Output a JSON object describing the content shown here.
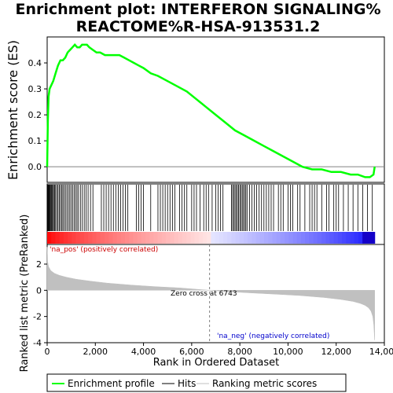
{
  "chart_data": {
    "type": "line",
    "title_line1": "Enrichment plot: INTERFERON SIGNALING%",
    "title_line2": "REACTOME%R-HSA-913531.2",
    "top_panel": {
      "ylabel": "Enrichment score (ES)",
      "ylim": [
        -0.06,
        0.5
      ],
      "yticks": [
        0.0,
        0.1,
        0.2,
        0.3,
        0.4
      ],
      "ytick_labels": [
        "0.0",
        "0.1",
        "0.2",
        "0.3",
        "0.4"
      ],
      "series": [
        {
          "name": "Enrichment profile",
          "color": "#00ff00",
          "x": [
            0,
            30,
            60,
            100,
            150,
            250,
            350,
            450,
            550,
            650,
            750,
            850,
            950,
            1050,
            1150,
            1250,
            1350,
            1450,
            1550,
            1650,
            1750,
            1900,
            2050,
            2200,
            2400,
            2600,
            2800,
            3000,
            3200,
            3400,
            3600,
            3800,
            4000,
            4300,
            4600,
            5000,
            5400,
            5800,
            6200,
            6600,
            7000,
            7400,
            7800,
            8200,
            8600,
            9000,
            9400,
            9800,
            10200,
            10600,
            11000,
            11400,
            11800,
            12200,
            12600,
            12900,
            13200,
            13400,
            13550,
            13600
          ],
          "y": [
            0.0,
            0.18,
            0.27,
            0.3,
            0.31,
            0.33,
            0.36,
            0.39,
            0.41,
            0.41,
            0.42,
            0.44,
            0.45,
            0.46,
            0.47,
            0.46,
            0.46,
            0.47,
            0.47,
            0.47,
            0.46,
            0.45,
            0.44,
            0.44,
            0.43,
            0.43,
            0.43,
            0.43,
            0.42,
            0.41,
            0.4,
            0.39,
            0.38,
            0.36,
            0.35,
            0.33,
            0.31,
            0.29,
            0.26,
            0.23,
            0.2,
            0.17,
            0.14,
            0.12,
            0.1,
            0.08,
            0.06,
            0.04,
            0.02,
            0.0,
            -0.01,
            -0.01,
            -0.02,
            -0.02,
            -0.03,
            -0.03,
            -0.04,
            -0.04,
            -0.03,
            0.0
          ]
        }
      ]
    },
    "bottom_panel": {
      "ylabel": "Ranked list metric (PreRanked)",
      "ylim": [
        -4,
        3.5
      ],
      "yticks": [
        -4,
        -2,
        0,
        2
      ],
      "ytick_labels": [
        "-4",
        "-2",
        "0",
        "2"
      ],
      "metric": {
        "name": "Ranking metric scores",
        "color": "#c0c0c0",
        "x": [
          0,
          20,
          60,
          150,
          300,
          500,
          800,
          1200,
          1800,
          2500,
          3500,
          4500,
          5500,
          6200,
          6743,
          7500,
          8500,
          9500,
          10500,
          11500,
          12200,
          12700,
          13000,
          13200,
          13350,
          13450,
          13520,
          13560,
          13600
        ],
        "y": [
          3.3,
          2.2,
          1.8,
          1.5,
          1.3,
          1.15,
          1.0,
          0.85,
          0.7,
          0.55,
          0.4,
          0.28,
          0.18,
          0.08,
          0.0,
          -0.1,
          -0.2,
          -0.3,
          -0.4,
          -0.55,
          -0.7,
          -0.85,
          -1.0,
          -1.15,
          -1.35,
          -1.6,
          -2.0,
          -2.6,
          -3.8
        ]
      },
      "annotations": {
        "pos_label": "'na_pos' (positively correlated)",
        "neg_label": "'na_neg' (negatively correlated)",
        "zero_cross_label": "Zero cross at 6743",
        "zero_cross_x": 6743
      }
    },
    "x_axis": {
      "xlabel": "Rank in Ordered Dataset",
      "xlim": [
        0,
        14000
      ],
      "xticks": [
        0,
        2000,
        4000,
        6000,
        8000,
        10000,
        12000,
        14000
      ],
      "xtick_labels": [
        "0",
        "2,000",
        "4,000",
        "6,000",
        "8,000",
        "10,000",
        "12,000",
        "14,000"
      ],
      "n_genes": 13600
    },
    "hits": [
      10,
      30,
      50,
      70,
      90,
      110,
      140,
      170,
      200,
      230,
      270,
      310,
      350,
      400,
      450,
      500,
      550,
      600,
      650,
      700,
      760,
      820,
      880,
      940,
      1000,
      1060,
      1120,
      1180,
      1240,
      1300,
      1380,
      1460,
      1540,
      1620,
      1700,
      1800,
      1900,
      2250,
      2350,
      2450,
      2550,
      2650,
      2750,
      2850,
      2950,
      3050,
      3150,
      3250,
      3350,
      3700,
      3800,
      3900,
      4000,
      4300,
      4600,
      4700,
      4800,
      4900,
      5000,
      5100,
      5200,
      5300,
      5500,
      5600,
      5700,
      5800,
      6000,
      6100,
      6200,
      6350,
      6500,
      6600,
      6700,
      6850,
      7000,
      7100,
      7200,
      7300,
      7650,
      7700,
      7750,
      7800,
      7850,
      7900,
      7950,
      8000,
      8050,
      8100,
      8150,
      8200,
      8250,
      8300,
      8400,
      8500,
      8600,
      8700,
      8800,
      8900,
      9000,
      9100,
      9200,
      9300,
      9400,
      9600,
      9700,
      9800,
      10000,
      10100,
      10200,
      10400,
      10500,
      10700,
      10900,
      11000,
      11100,
      11200,
      11400,
      11600,
      11700,
      11900,
      12000,
      12100,
      12300,
      12500,
      12700,
      12900,
      13100,
      13300,
      13500
    ],
    "legend": {
      "items": [
        {
          "label": "Enrichment profile",
          "color": "#00ff00"
        },
        {
          "label": "Hits",
          "color": "#000000"
        },
        {
          "label": "Ranking metric scores",
          "color": "#c0c0c0"
        }
      ]
    },
    "colors": {
      "pos_text": "#cc0000",
      "neg_text": "#0000cc",
      "zero_line": "#808080",
      "heat_pos": "#ff0000",
      "heat_neg": "#0000ff"
    }
  }
}
